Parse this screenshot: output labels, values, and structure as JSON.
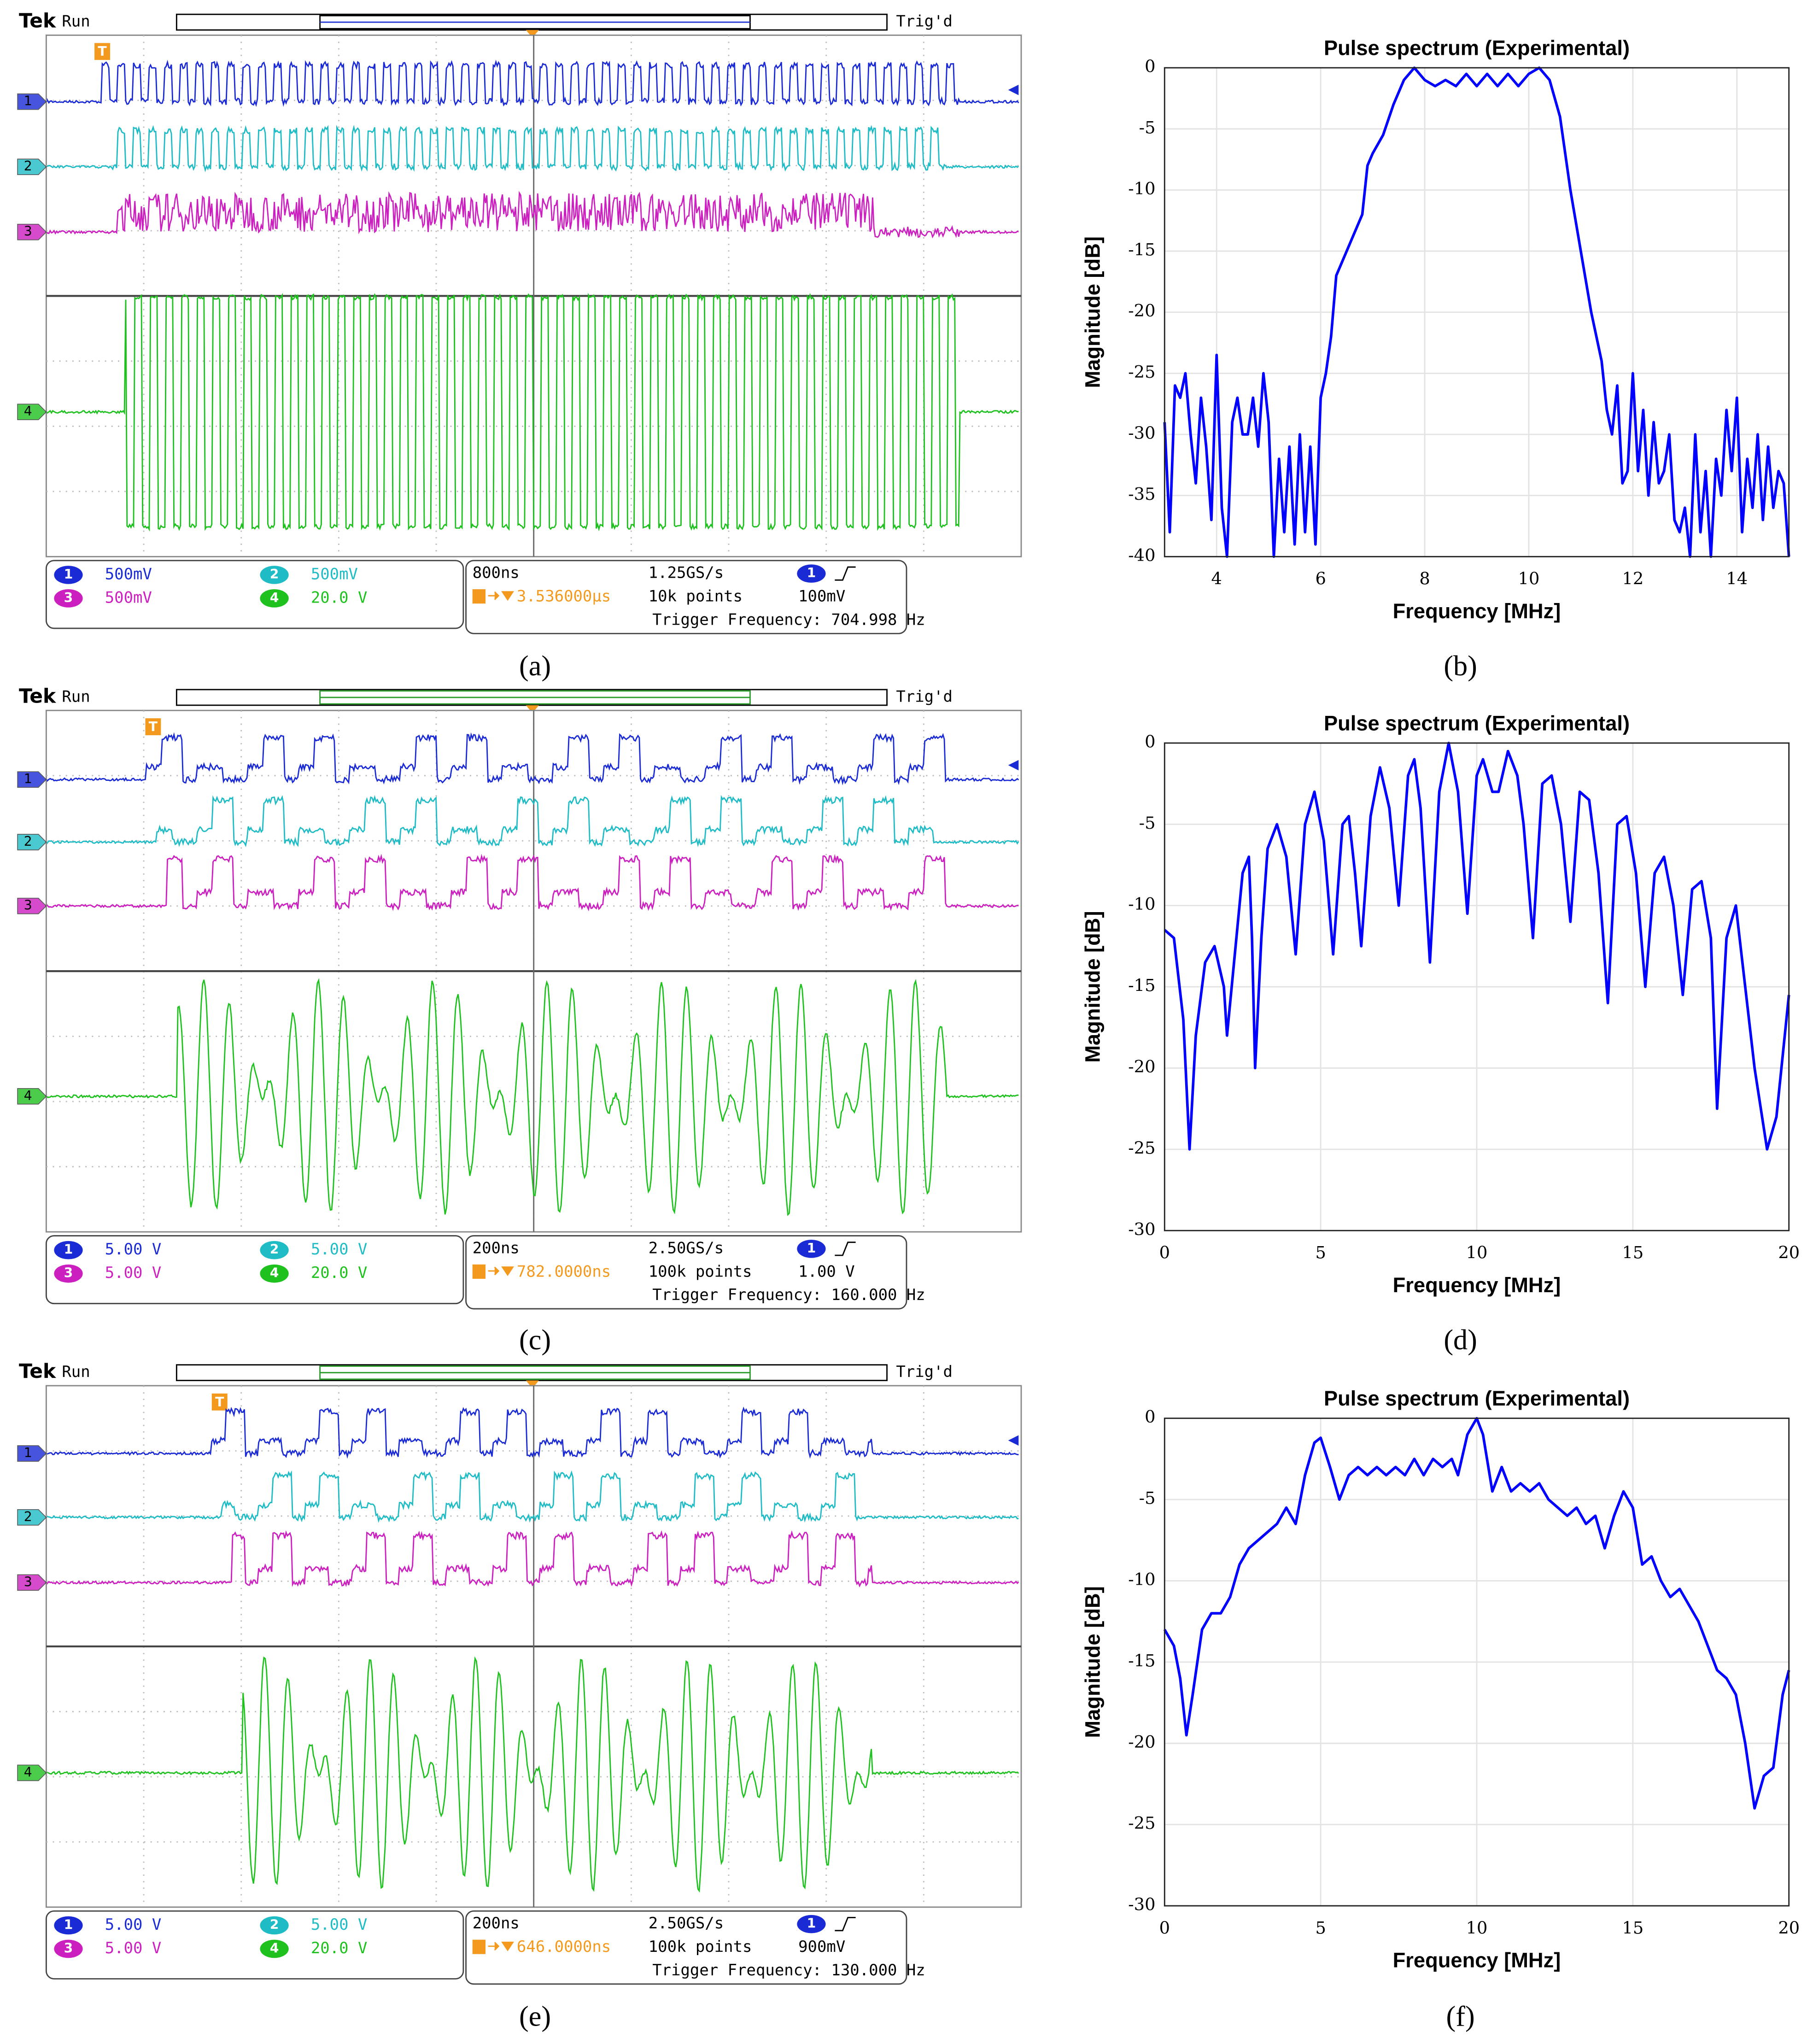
{
  "captions": [
    "(a)",
    "(b)",
    "(c)",
    "(d)",
    "(e)",
    "(f)"
  ],
  "scopes": [
    {
      "tek": "Tek",
      "run": "Run",
      "trig": "Trig'd",
      "trigger_marker": "T",
      "channels": [
        {
          "number": "1",
          "scale": "500mV"
        },
        {
          "number": "2",
          "scale": "500mV"
        },
        {
          "number": "3",
          "scale": "500mV"
        },
        {
          "number": "4",
          "scale": "20.0 V"
        }
      ],
      "timebase": "800ns",
      "sample_rate": "1.25GS/s",
      "record": "10k points",
      "trigger_channel": "1",
      "trigger_level": "100mV",
      "trigger_position": "3.536000µs",
      "trigger_frequency": "Trigger Frequency: 704.998 Hz"
    },
    {
      "tek": "Tek",
      "run": "Run",
      "trig": "Trig'd",
      "trigger_marker": "T",
      "channels": [
        {
          "number": "1",
          "scale": "5.00 V"
        },
        {
          "number": "2",
          "scale": "5.00 V"
        },
        {
          "number": "3",
          "scale": "5.00 V"
        },
        {
          "number": "4",
          "scale": "20.0 V"
        }
      ],
      "timebase": "200ns",
      "sample_rate": "2.50GS/s",
      "record": "100k points",
      "trigger_channel": "1",
      "trigger_level": "1.00 V",
      "trigger_position": "782.0000ns",
      "trigger_frequency": "Trigger Frequency: 160.000 Hz"
    },
    {
      "tek": "Tek",
      "run": "Run",
      "trig": "Trig'd",
      "trigger_marker": "T",
      "channels": [
        {
          "number": "1",
          "scale": "5.00 V"
        },
        {
          "number": "2",
          "scale": "5.00 V"
        },
        {
          "number": "3",
          "scale": "5.00 V"
        },
        {
          "number": "4",
          "scale": "20.0 V"
        }
      ],
      "timebase": "200ns",
      "sample_rate": "2.50GS/s",
      "record": "100k points",
      "trigger_channel": "1",
      "trigger_level": "900mV",
      "trigger_position": "646.0000ns",
      "trigger_frequency": "Trigger Frequency: 130.000 Hz"
    }
  ],
  "chart_data": [
    {
      "type": "line",
      "title": "Pulse spectrum (Experimental)",
      "xlabel": "Frequency [MHz]",
      "ylabel": "Magnitude [dB]",
      "color": "#0000ff",
      "grid": true,
      "xlim": [
        3,
        15
      ],
      "ylim": [
        -40,
        0
      ],
      "xticks": [
        4,
        6,
        8,
        10,
        12,
        14
      ],
      "yticks": [
        0,
        -5,
        -10,
        -15,
        -20,
        -25,
        -30,
        -35,
        -40
      ],
      "x": [
        3,
        3.1,
        3.2,
        3.3,
        3.4,
        3.5,
        3.6,
        3.7,
        3.8,
        3.9,
        4,
        4.1,
        4.2,
        4.3,
        4.4,
        4.5,
        4.6,
        4.7,
        4.8,
        4.9,
        5,
        5.1,
        5.2,
        5.3,
        5.4,
        5.5,
        5.6,
        5.7,
        5.8,
        5.9,
        6,
        6.1,
        6.2,
        6.3,
        6.4,
        6.5,
        6.6,
        6.7,
        6.8,
        6.9,
        7,
        7.2,
        7.4,
        7.6,
        7.8,
        8,
        8.2,
        8.4,
        8.6,
        8.8,
        9,
        9.2,
        9.4,
        9.6,
        9.8,
        10,
        10.2,
        10.4,
        10.6,
        10.8,
        11,
        11.2,
        11.4,
        11.5,
        11.6,
        11.7,
        11.8,
        11.9,
        12,
        12.1,
        12.2,
        12.3,
        12.4,
        12.5,
        12.6,
        12.7,
        12.8,
        12.9,
        13,
        13.1,
        13.2,
        13.3,
        13.4,
        13.5,
        13.6,
        13.7,
        13.8,
        13.9,
        14,
        14.1,
        14.2,
        14.3,
        14.4,
        14.5,
        14.6,
        14.7,
        14.8,
        14.9,
        15
      ],
      "values": [
        -29,
        -38,
        -26,
        -27,
        -25,
        -30,
        -34,
        -27,
        -31,
        -37,
        -23.5,
        -36,
        -40,
        -29,
        -27,
        -30,
        -30,
        -27,
        -31,
        -25,
        -29,
        -40,
        -32,
        -38,
        -31,
        -39,
        -30,
        -38,
        -31,
        -39,
        -27,
        -25,
        -22,
        -17,
        -16,
        -15,
        -14,
        -13,
        -12,
        -8,
        -7,
        -5.5,
        -3,
        -1,
        0,
        -1,
        -1.5,
        -1,
        -1.5,
        -0.5,
        -1.5,
        -0.5,
        -1.5,
        -0.5,
        -1.5,
        -0.5,
        0,
        -1,
        -4,
        -10,
        -15,
        -20,
        -24,
        -28,
        -30,
        -26,
        -34,
        -33,
        -25,
        -33,
        -28,
        -35,
        -29,
        -34,
        -33,
        -30,
        -37,
        -38,
        -36,
        -40,
        -30,
        -38,
        -33,
        -40,
        -32,
        -35,
        -28,
        -33,
        -27,
        -38,
        -32,
        -36,
        -30,
        -37,
        -31,
        -36,
        -33,
        -34,
        -40
      ]
    },
    {
      "type": "line",
      "title": "Pulse spectrum (Experimental)",
      "xlabel": "Frequency [MHz]",
      "ylabel": "Magnitude [dB]",
      "color": "#0000ff",
      "grid": true,
      "xlim": [
        0,
        20
      ],
      "ylim": [
        -30,
        0
      ],
      "xticks": [
        0,
        5,
        10,
        15,
        20
      ],
      "yticks": [
        0,
        -5,
        -10,
        -15,
        -20,
        -25,
        -30
      ],
      "x": [
        0,
        0.3,
        0.6,
        0.8,
        1,
        1.3,
        1.6,
        1.9,
        2,
        2.2,
        2.5,
        2.7,
        2.8,
        2.9,
        3.1,
        3.3,
        3.6,
        3.9,
        4.2,
        4.5,
        4.8,
        5.1,
        5.4,
        5.7,
        5.9,
        6.1,
        6.3,
        6.6,
        6.9,
        7.2,
        7.5,
        7.8,
        8,
        8.2,
        8.5,
        8.8,
        9.1,
        9.4,
        9.7,
        10,
        10.2,
        10.5,
        10.7,
        11,
        11.3,
        11.5,
        11.8,
        12.1,
        12.4,
        12.7,
        13,
        13.3,
        13.6,
        13.9,
        14.2,
        14.5,
        14.8,
        15.1,
        15.4,
        15.7,
        16,
        16.3,
        16.6,
        16.9,
        17.2,
        17.5,
        17.7,
        18,
        18.3,
        18.6,
        18.9,
        19.3,
        19.6,
        20
      ],
      "values": [
        -11.5,
        -12,
        -17,
        -25,
        -18,
        -13.5,
        -12.5,
        -15,
        -18,
        -14,
        -8,
        -7,
        -12,
        -20,
        -12,
        -6.5,
        -5,
        -7,
        -13,
        -5,
        -3,
        -6,
        -13,
        -5,
        -4.5,
        -8,
        -12.5,
        -4.5,
        -1.5,
        -4,
        -10,
        -2,
        -1,
        -4,
        -13.5,
        -3,
        0,
        -3,
        -10.5,
        -2,
        -1,
        -3,
        -3,
        -0.5,
        -2,
        -5,
        -12,
        -2.5,
        -2,
        -5,
        -11,
        -3,
        -3.5,
        -8,
        -16,
        -5,
        -4.5,
        -8,
        -15,
        -8,
        -7,
        -10,
        -15.5,
        -9,
        -8.5,
        -12,
        -22.5,
        -12,
        -10,
        -15,
        -20,
        -25,
        -23,
        -15.5
      ]
    },
    {
      "type": "line",
      "title": "Pulse spectrum (Experimental)",
      "xlabel": "Frequency [MHz]",
      "ylabel": "Magnitude [dB]",
      "color": "#0000ff",
      "grid": true,
      "xlim": [
        0,
        20
      ],
      "ylim": [
        -30,
        0
      ],
      "xticks": [
        0,
        5,
        10,
        15,
        20
      ],
      "yticks": [
        0,
        -5,
        -10,
        -15,
        -20,
        -25,
        -30
      ],
      "x": [
        0,
        0.3,
        0.5,
        0.7,
        0.9,
        1.2,
        1.5,
        1.8,
        2.1,
        2.4,
        2.7,
        3,
        3.3,
        3.6,
        3.9,
        4.2,
        4.5,
        4.8,
        5,
        5.3,
        5.6,
        5.9,
        6.2,
        6.5,
        6.8,
        7.1,
        7.4,
        7.7,
        8,
        8.3,
        8.6,
        8.9,
        9.2,
        9.4,
        9.7,
        10,
        10.2,
        10.5,
        10.8,
        11.1,
        11.4,
        11.7,
        12,
        12.3,
        12.6,
        12.9,
        13.2,
        13.5,
        13.8,
        14.1,
        14.4,
        14.7,
        15,
        15.3,
        15.6,
        15.9,
        16.2,
        16.5,
        16.8,
        17.1,
        17.4,
        17.7,
        18,
        18.3,
        18.6,
        18.9,
        19.2,
        19.5,
        19.8,
        20
      ],
      "values": [
        -13,
        -14,
        -16,
        -19.5,
        -17,
        -13,
        -12,
        -12,
        -11,
        -9,
        -8,
        -7.5,
        -7,
        -6.5,
        -5.5,
        -6.5,
        -3.5,
        -1.5,
        -1.2,
        -3,
        -5,
        -3.5,
        -3,
        -3.5,
        -3,
        -3.5,
        -3,
        -3.5,
        -2.5,
        -3.5,
        -2.5,
        -3,
        -2.5,
        -3.5,
        -1,
        0,
        -1,
        -4.5,
        -3,
        -4.5,
        -4,
        -4.5,
        -4,
        -5,
        -5.5,
        -6,
        -5.5,
        -6.5,
        -6,
        -8,
        -6,
        -4.5,
        -5.5,
        -9,
        -8.5,
        -10,
        -11,
        -10.5,
        -11.5,
        -12.5,
        -14,
        -15.5,
        -16,
        -17,
        -20,
        -24,
        -22,
        -21.5,
        -17,
        -15.5
      ]
    }
  ]
}
